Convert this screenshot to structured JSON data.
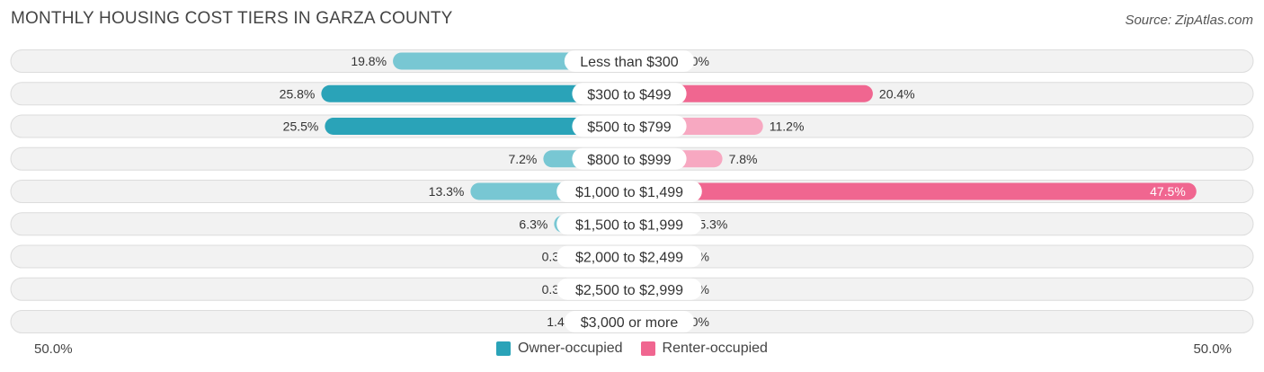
{
  "header": {
    "title": "MONTHLY HOUSING COST TIERS IN GARZA COUNTY",
    "source": "Source: ZipAtlas.com"
  },
  "axis": {
    "left_label": "50.0%",
    "right_label": "50.0%"
  },
  "legend": {
    "owner_label": "Owner-occupied",
    "renter_label": "Renter-occupied"
  },
  "colors": {
    "owner_dark": "#2aa3b8",
    "owner_light": "#78c7d3",
    "renter_dark": "#f06690",
    "renter_light": "#f7a8c1",
    "row_bg": "#f2f2f2",
    "row_border": "#dcdcdc"
  },
  "chart_data": {
    "type": "bar",
    "orientation": "diverging-horizontal",
    "title": "MONTHLY HOUSING COST TIERS IN GARZA COUNTY",
    "max_percent": 50,
    "categories": [
      "Less than $300",
      "$300 to $499",
      "$500 to $799",
      "$800 to $999",
      "$1,000 to $1,499",
      "$1,500 to $1,999",
      "$2,000 to $2,499",
      "$2,500 to $2,999",
      "$3,000 or more"
    ],
    "series": [
      {
        "name": "Owner-occupied",
        "values": [
          19.8,
          25.8,
          25.5,
          7.2,
          13.3,
          6.3,
          0.34,
          0.34,
          1.4
        ],
        "labels": [
          "19.8%",
          "25.8%",
          "25.5%",
          "7.2%",
          "13.3%",
          "6.3%",
          "0.34%",
          "0.34%",
          "1.4%"
        ]
      },
      {
        "name": "Renter-occupied",
        "values": [
          0.0,
          20.4,
          11.2,
          7.8,
          47.5,
          5.3,
          0.0,
          0.0,
          0.0
        ],
        "labels": [
          "0.0%",
          "20.4%",
          "11.2%",
          "7.8%",
          "47.5%",
          "5.3%",
          "0.0%",
          "0.0%",
          "0.0%"
        ]
      }
    ],
    "legend_position": "bottom"
  }
}
